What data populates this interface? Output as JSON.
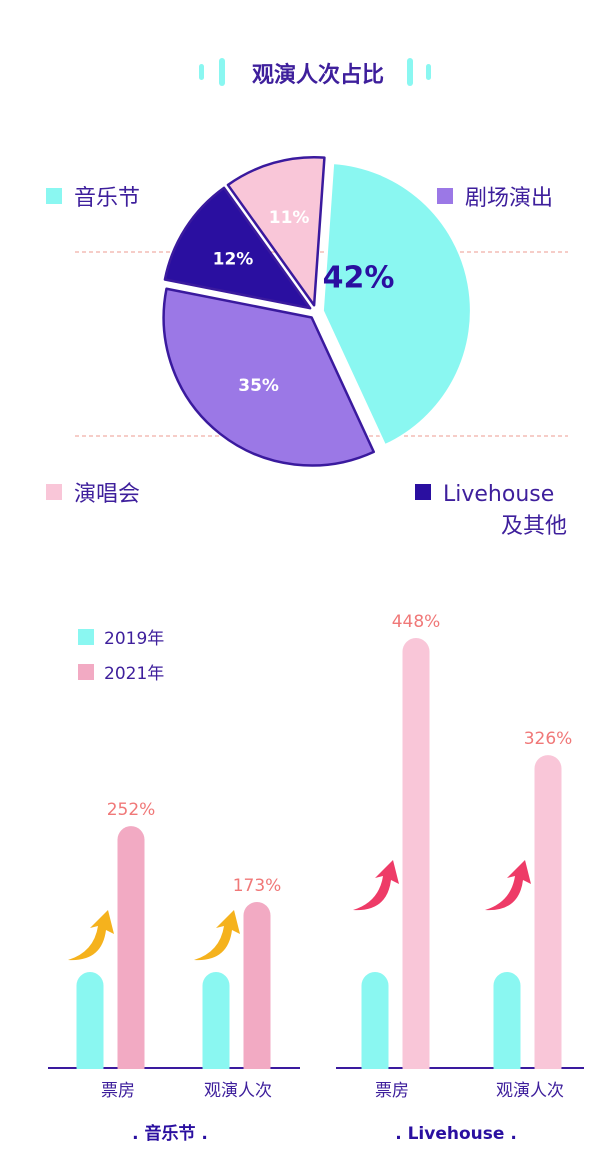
{
  "title": "观演人次占比",
  "colors": {
    "title": "#3e1f9c",
    "cyan": "#8af7f1",
    "purple": "#9b78e6",
    "navy": "#2a0fa0",
    "pink_light": "#f9c6d8",
    "pink_mid": "#f2aac3",
    "outline": "#3a1a9e",
    "dash": "#ee9b90",
    "red_text": "#f07878",
    "axis": "#3a1a9e",
    "arrow_yellow": "#f5b21d",
    "arrow_red": "#ee3b67"
  },
  "chart_data": [
    {
      "type": "pie",
      "title": "观演人次占比",
      "slices": [
        {
          "label": "音乐节",
          "value": 42,
          "display": "42%",
          "color": "#8af7f1"
        },
        {
          "label": "剧场演出",
          "value": 35,
          "display": "35%",
          "color": "#9b78e6"
        },
        {
          "label": "Livehouse及其他",
          "value": 12,
          "display": "12%",
          "color": "#2a0fa0"
        },
        {
          "label": "演唱会",
          "value": 11,
          "display": "11%",
          "color": "#f9c6d8"
        }
      ],
      "legend": [
        {
          "label": "音乐节",
          "color": "#8af7f1"
        },
        {
          "label": "剧场演出",
          "color": "#9b78e6"
        },
        {
          "label": "演唱会",
          "color": "#f9c6d8"
        },
        {
          "label": "Livehouse",
          "label2": "及其他",
          "color": "#2a0fa0"
        }
      ]
    },
    {
      "type": "bar",
      "title": ". 音乐节 .",
      "categories": [
        "票房",
        "观演人次"
      ],
      "series": [
        {
          "name": "2019年",
          "values": [
            100,
            100
          ],
          "color": "#8af7f1"
        },
        {
          "name": "2021年",
          "values": [
            252,
            173
          ],
          "color": "#f2aac3"
        }
      ],
      "data_labels": [
        "252%",
        "173%"
      ]
    },
    {
      "type": "bar",
      "title": ". Livehouse .",
      "categories": [
        "票房",
        "观演人次"
      ],
      "series": [
        {
          "name": "2019年",
          "values": [
            100,
            100
          ],
          "color": "#8af7f1"
        },
        {
          "name": "2021年",
          "values": [
            448,
            326
          ],
          "color": "#f9c6d8"
        }
      ],
      "data_labels": [
        "448%",
        "326%"
      ]
    }
  ],
  "bar_legend": [
    {
      "label": "2019年",
      "color": "#8af7f1"
    },
    {
      "label": "2021年",
      "color": "#f2aac3"
    }
  ]
}
